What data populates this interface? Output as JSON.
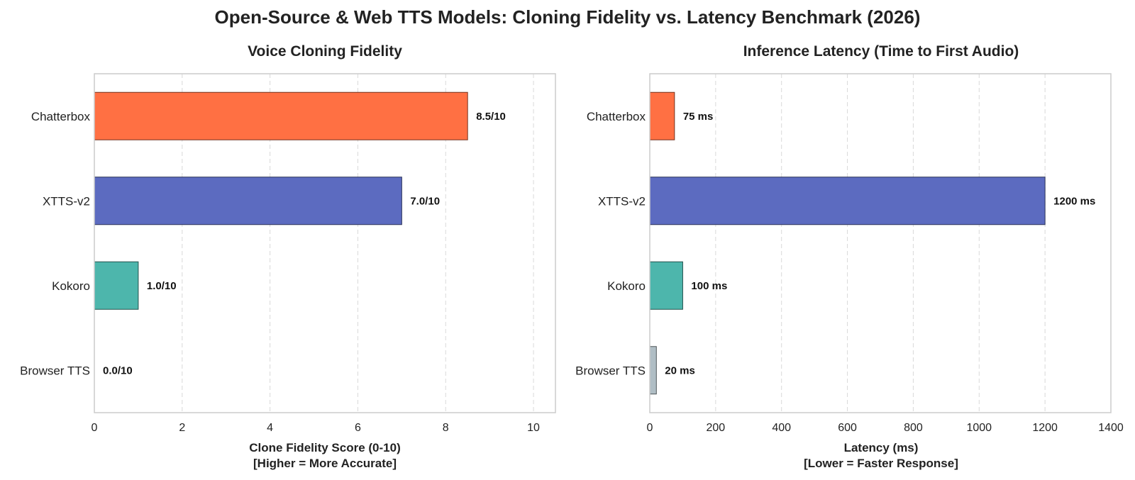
{
  "figure": {
    "title": "Open-Source & Web TTS Models: Cloning Fidelity vs. Latency Benchmark (2026)"
  },
  "chart_data": [
    {
      "type": "bar",
      "orientation": "horizontal",
      "title": "Voice Cloning Fidelity",
      "categories": [
        "Chatterbox",
        "XTTS-v2",
        "Kokoro",
        "Browser TTS"
      ],
      "values": [
        8.5,
        7.0,
        1.0,
        0.0
      ],
      "value_labels": [
        "8.5/10",
        "7.0/10",
        "1.0/10",
        "0.0/10"
      ],
      "colors": [
        "#ff7043",
        "#5c6bc0",
        "#4db6ac",
        "#b0bec5"
      ],
      "xlabel": "Clone Fidelity Score (0-10)",
      "xlabel_note": "[Higher = More Accurate]",
      "ylabel": "",
      "xlim": [
        0,
        10.5
      ],
      "xticks": [
        0,
        2,
        4,
        6,
        8,
        10
      ],
      "grid": "vertical dashed"
    },
    {
      "type": "bar",
      "orientation": "horizontal",
      "title": "Inference Latency (Time to First Audio)",
      "categories": [
        "Chatterbox",
        "XTTS-v2",
        "Kokoro",
        "Browser TTS"
      ],
      "values": [
        75,
        1200,
        100,
        20
      ],
      "value_labels": [
        "75 ms",
        "1200 ms",
        "100 ms",
        "20 ms"
      ],
      "colors": [
        "#ff7043",
        "#5c6bc0",
        "#4db6ac",
        "#b0bec5"
      ],
      "xlabel": "Latency (ms)",
      "xlabel_note": "[Lower = Faster Response]",
      "ylabel": "",
      "xlim": [
        0,
        1400
      ],
      "xticks": [
        0,
        200,
        400,
        600,
        800,
        1000,
        1200,
        1400
      ],
      "grid": "vertical dashed"
    }
  ]
}
